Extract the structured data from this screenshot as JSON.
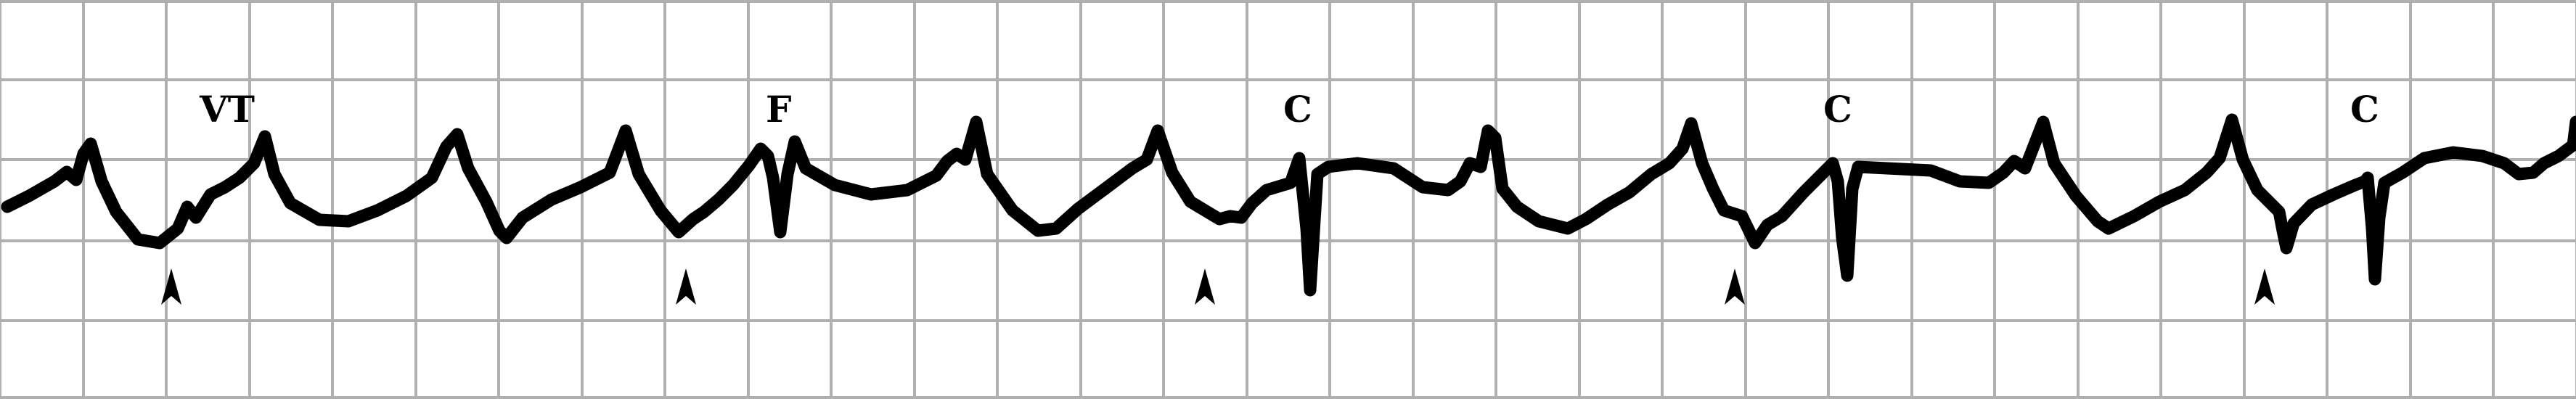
{
  "strip": {
    "grid_color": "#b0b0b0",
    "trace_color": "#000000",
    "background": "#ffffff"
  },
  "labels": [
    {
      "id": "vt",
      "text": "VT"
    },
    {
      "id": "f1",
      "text": "F"
    },
    {
      "id": "c1",
      "text": "C"
    },
    {
      "id": "c2",
      "text": "C"
    },
    {
      "id": "c3",
      "text": "C"
    }
  ],
  "markers": {
    "count": 5,
    "icon": "arrowhead-icon"
  }
}
